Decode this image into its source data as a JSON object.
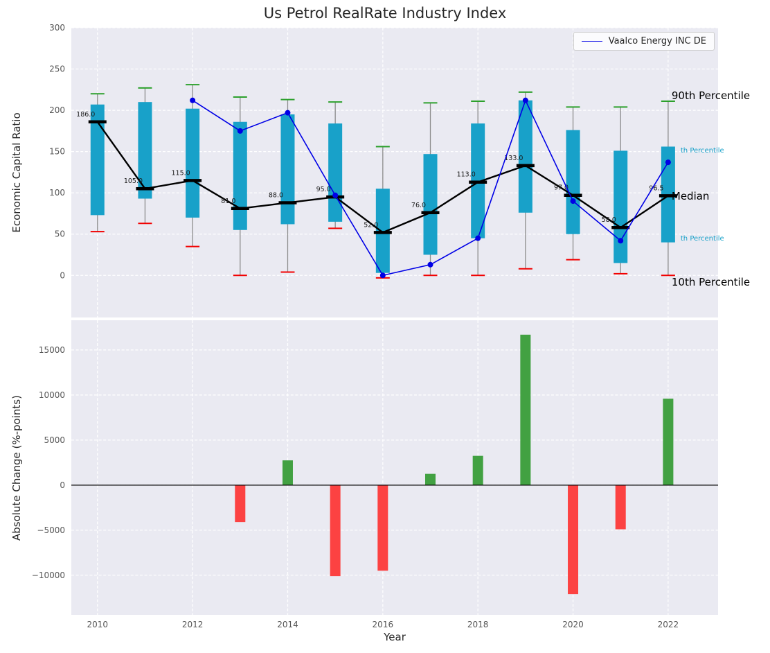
{
  "title": "Us Petrol RealRate Industry Index",
  "style": {
    "axes_bg": "#eaeaf2",
    "grid_color": "#ffffff",
    "tick_color": "#555555",
    "text_color": "#262626"
  },
  "chart_data": [
    {
      "type": "boxplot",
      "title": "Us Petrol RealRate Industry Index",
      "ylabel": "Economic Capital Ratio",
      "xlim": [
        2009.45,
        2023.05
      ],
      "ylim": [
        -51,
        300
      ],
      "yticks": [
        0,
        50,
        100,
        150,
        200,
        250,
        300
      ],
      "xticks": [
        2010,
        2012,
        2014,
        2016,
        2018,
        2020,
        2022
      ],
      "grid": true,
      "legend_position": "upper right",
      "years": [
        2010,
        2011,
        2012,
        2013,
        2014,
        2015,
        2016,
        2017,
        2018,
        2019,
        2020,
        2021,
        2022
      ],
      "p90": [
        220,
        227,
        231,
        216,
        213,
        210,
        156,
        209,
        211,
        222,
        204,
        204,
        211
      ],
      "q75": [
        207,
        210,
        202,
        186,
        195,
        184,
        105,
        147,
        184,
        212,
        176,
        151,
        156
      ],
      "median": [
        186,
        105,
        115,
        81,
        88,
        95,
        52,
        76,
        113,
        133,
        97,
        58,
        96.5
      ],
      "q25": [
        73,
        93,
        70,
        55,
        62,
        65,
        3,
        25,
        45,
        76,
        50,
        15,
        40
      ],
      "p10": [
        53,
        63,
        35,
        0,
        4,
        57,
        -3,
        0,
        0,
        8,
        19,
        2,
        0
      ],
      "median_labels": [
        "186.0",
        "105.0",
        "115.0",
        "81.0",
        "88.0",
        "95.0",
        "52.0",
        "76.0",
        "113.0",
        "133.0",
        "97.0",
        "58.0",
        "96.5"
      ],
      "company": {
        "name": "Vaalco Energy INC DE",
        "years": [
          2012,
          2013,
          2014,
          2015,
          2016,
          2017,
          2018,
          2019,
          2020,
          2021,
          2022
        ],
        "values": [
          212,
          175,
          197,
          97,
          0,
          13,
          45,
          212,
          90,
          42,
          137
        ]
      },
      "right_annotations": [
        {
          "text": "90th Percentile",
          "value": 218,
          "color": "#000000",
          "size": 15
        },
        {
          "text": "th Percentile",
          "value": 152,
          "color": "#18a1c9",
          "size": 10
        },
        {
          "text": "Median",
          "value": 96,
          "color": "#000000",
          "size": 15
        },
        {
          "text": "th Percentile",
          "value": 45,
          "color": "#18a1c9",
          "size": 10
        },
        {
          "text": "10th Percentile",
          "value": -8,
          "color": "#000000",
          "size": 15
        }
      ],
      "colors": {
        "box": "#18a1c9",
        "whisker": "#8c8c8c",
        "cap_top": "#2ca02c",
        "cap_bottom": "#f20000",
        "median_line": "#000000",
        "company_line": "#0000e6"
      }
    },
    {
      "type": "bar",
      "ylabel": "Absolute Change (%-points)",
      "xlabel": "Year",
      "xlim": [
        2009.45,
        2023.05
      ],
      "ylim": [
        -14400,
        18300
      ],
      "yticks": [
        -10000,
        -5000,
        0,
        5000,
        10000,
        15000
      ],
      "xticks": [
        2010,
        2012,
        2014,
        2016,
        2018,
        2020,
        2022
      ],
      "grid": true,
      "years": [
        2010,
        2011,
        2012,
        2013,
        2014,
        2015,
        2016,
        2017,
        2018,
        2019,
        2020,
        2021,
        2022
      ],
      "values": [
        0,
        0,
        0,
        -4100,
        2750,
        -10100,
        -9500,
        1250,
        3250,
        16700,
        -12100,
        -4900,
        9600
      ],
      "colors": {
        "positive": "#42a142",
        "negative": "#fc4242",
        "zero_line": "#000000"
      }
    }
  ]
}
